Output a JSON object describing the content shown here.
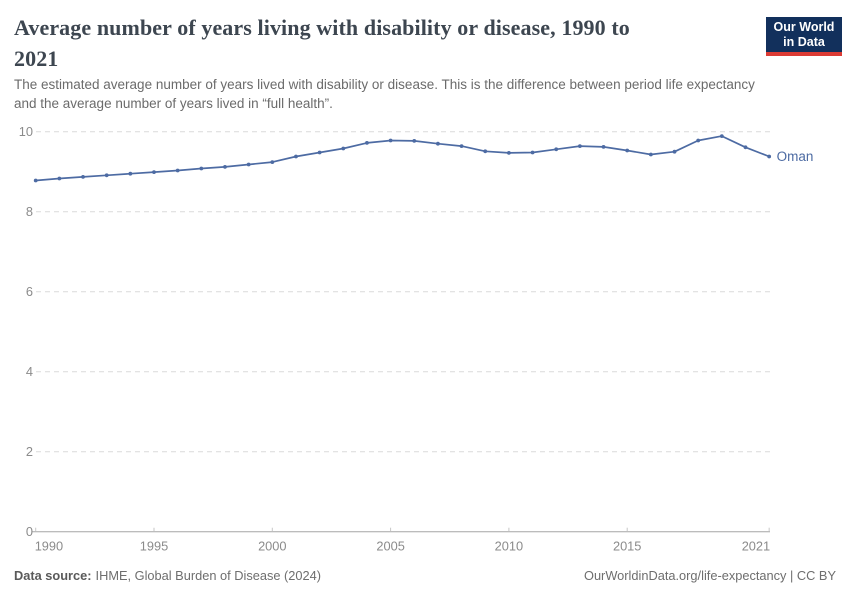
{
  "header": {
    "title_lines": [
      "Average number of years living with disability or disease, 1990 to",
      "2021"
    ],
    "subtitle": "The estimated average number of years lived with disability or disease. This is the difference between period life expectancy and the average number of years lived in “full health”.",
    "logo": {
      "line1": "Our World",
      "line2": "in Data"
    }
  },
  "chart_data": {
    "type": "line",
    "title": "Average number of years living with disability or disease, 1990 to 2021",
    "x": [
      1990,
      1991,
      1992,
      1993,
      1994,
      1995,
      1996,
      1997,
      1998,
      1999,
      2000,
      2001,
      2002,
      2003,
      2004,
      2005,
      2006,
      2007,
      2008,
      2009,
      2010,
      2011,
      2012,
      2013,
      2014,
      2015,
      2016,
      2017,
      2018,
      2019,
      2020,
      2021
    ],
    "series": [
      {
        "name": "Oman",
        "color": "#4d6ba3",
        "values": [
          8.78,
          8.83,
          8.87,
          8.91,
          8.95,
          8.99,
          9.03,
          9.08,
          9.12,
          9.18,
          9.24,
          9.38,
          9.48,
          9.58,
          9.72,
          9.78,
          9.77,
          9.7,
          9.64,
          9.51,
          9.47,
          9.48,
          9.56,
          9.64,
          9.62,
          9.53,
          9.43,
          9.5,
          9.78,
          9.89,
          9.61,
          9.38
        ]
      }
    ],
    "ylim": [
      0,
      10
    ],
    "yticks": [
      0,
      2,
      4,
      6,
      8,
      10
    ],
    "xticks": [
      1990,
      1995,
      2000,
      2005,
      2010,
      2015,
      2021
    ],
    "grid": "horizontal-dashed",
    "legend_position": "end-of-line",
    "entity_label": "Oman",
    "xlabel": "",
    "ylabel": ""
  },
  "colors": {
    "line": "#4d6ba3",
    "grid": "#dadada",
    "axis": "#a5a5a5",
    "tick": "#c6c6c6",
    "tick_label": "#8b8b8b",
    "logo_bg": "#12305c",
    "logo_stripe": "#dc3b34"
  },
  "footer": {
    "source_label": "Data source:",
    "source_text": "IHME, Global Burden of Disease (2024)",
    "credit": "OurWorldinData.org/life-expectancy | CC BY"
  }
}
